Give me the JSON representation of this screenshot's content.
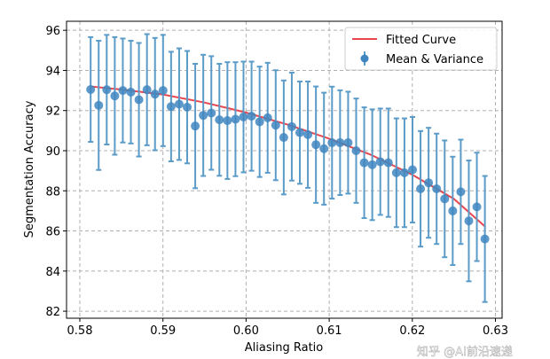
{
  "chart_data": {
    "type": "scatter",
    "title": "",
    "xlabel": "Aliasing Ratio",
    "ylabel": "Segmentation Accuracy",
    "xlim": [
      0.5784,
      0.6308
    ],
    "ylim": [
      81.65,
      96.45
    ],
    "xticks": [
      0.58,
      0.59,
      0.6,
      0.61,
      0.62,
      0.63
    ],
    "xtick_labels": [
      "0.58",
      "0.59",
      "0.60",
      "0.61",
      "0.62",
      "0.63"
    ],
    "yticks": [
      82,
      84,
      86,
      88,
      90,
      92,
      94,
      96
    ],
    "ytick_labels": [
      "82",
      "84",
      "86",
      "88",
      "90",
      "92",
      "94",
      "96"
    ],
    "grid": true,
    "legend_position": "top-right",
    "series": [
      {
        "name": "Mean & Variance",
        "kind": "errorbar",
        "color": "#3f86c0",
        "x_start": 0.5813,
        "x_step": 0.000968,
        "mean": [
          93.05,
          92.26,
          93.04,
          92.73,
          93.0,
          92.92,
          92.54,
          93.04,
          92.82,
          93.0,
          92.2,
          92.32,
          92.17,
          91.23,
          91.76,
          91.88,
          91.54,
          91.5,
          91.57,
          91.68,
          91.72,
          91.44,
          91.64,
          91.27,
          90.66,
          91.2,
          90.9,
          90.8,
          90.3,
          90.1,
          90.4,
          90.4,
          90.4,
          90.0,
          89.4,
          89.3,
          89.45,
          89.4,
          88.9,
          88.9,
          89.05,
          88.1,
          88.4,
          88.1,
          87.6,
          87.0,
          87.95,
          86.5,
          87.2,
          85.6
        ],
        "err": [
          2.61,
          3.22,
          2.73,
          2.93,
          2.59,
          2.56,
          2.83,
          2.77,
          2.8,
          2.77,
          2.73,
          2.78,
          2.8,
          3.1,
          3.02,
          2.83,
          2.79,
          2.91,
          2.84,
          2.76,
          2.72,
          2.75,
          2.74,
          2.74,
          2.84,
          2.69,
          2.55,
          2.65,
          2.9,
          2.79,
          2.79,
          2.61,
          2.54,
          2.6,
          2.76,
          2.76,
          2.65,
          2.7,
          2.71,
          2.71,
          2.63,
          2.88,
          2.74,
          2.75,
          2.91,
          2.7,
          2.6,
          3.01,
          2.7,
          3.14
        ]
      },
      {
        "name": "Fitted Curve",
        "kind": "line",
        "color": "#e8474f",
        "x": [
          0.5813,
          0.585,
          0.59,
          0.595,
          0.6,
          0.605,
          0.61,
          0.615,
          0.62,
          0.625,
          0.6288
        ],
        "y": [
          93.2,
          93.05,
          92.8,
          92.4,
          91.9,
          91.3,
          90.6,
          89.8,
          88.8,
          87.6,
          86.2
        ]
      }
    ]
  },
  "watermark": "知乎 @AI前沿速递"
}
